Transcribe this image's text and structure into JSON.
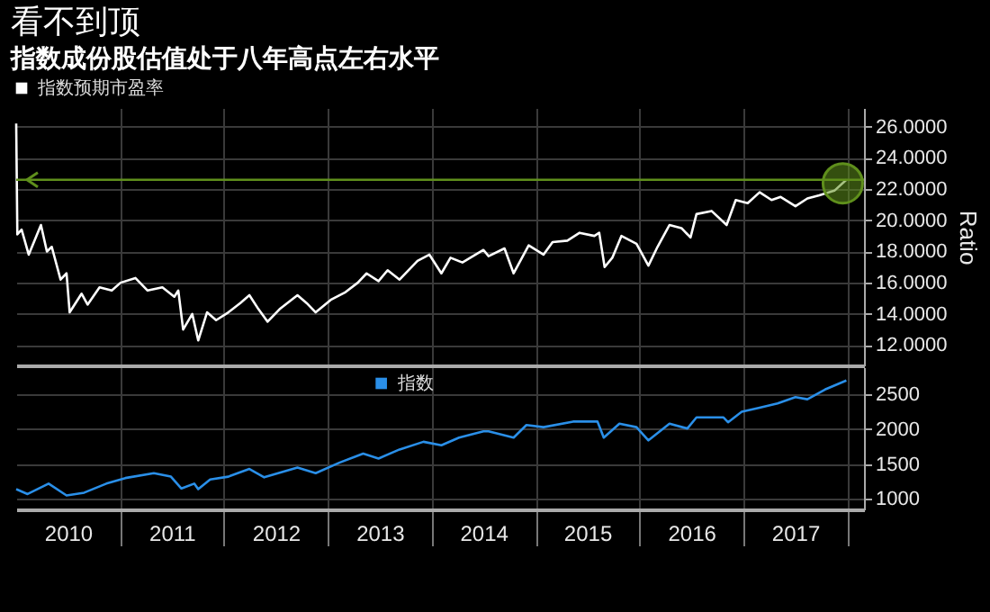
{
  "chart_data": [
    {
      "type": "line",
      "title": "看不到顶",
      "subtitle": "指数成份股估值处于八年高点左右水平",
      "ylabel": "Ratio",
      "x": [
        "2010-01-01",
        "2010-01-05",
        "2010-01-20",
        "2010-02-14",
        "2010-03-29",
        "2010-04-19",
        "2010-05-06",
        "2010-06-06",
        "2010-06-27",
        "2010-07-08",
        "2010-08-19",
        "2010-09-09",
        "2010-10-21",
        "2010-12-03",
        "2011-01-03",
        "2011-02-24",
        "2011-04-08",
        "2011-05-30",
        "2011-07-11",
        "2011-07-25",
        "2011-08-11",
        "2011-09-12",
        "2011-10-03",
        "2011-11-03",
        "2011-12-05",
        "2012-01-17",
        "2012-02-28",
        "2012-03-31",
        "2012-05-02",
        "2012-06-03",
        "2012-07-15",
        "2012-09-16",
        "2012-10-18",
        "2012-11-19",
        "2013-01-11",
        "2013-03-04",
        "2013-04-16",
        "2013-05-17",
        "2013-06-28",
        "2013-07-30",
        "2013-09-10",
        "2013-11-12",
        "2013-12-24",
        "2014-02-04",
        "2014-03-08",
        "2014-04-19",
        "2014-07-02",
        "2014-07-20",
        "2014-09-14",
        "2014-10-16",
        "2014-12-08",
        "2015-01-29",
        "2015-03-02",
        "2015-04-23",
        "2015-06-05",
        "2015-07-27",
        "2015-08-13",
        "2015-09-01",
        "2015-09-28",
        "2015-10-30",
        "2015-12-22",
        "2016-02-02",
        "2016-03-05",
        "2016-04-16",
        "2016-05-28",
        "2016-06-29",
        "2016-07-20",
        "2016-09-11",
        "2016-11-03",
        "2016-12-05",
        "2017-01-16",
        "2017-02-27",
        "2017-04-10",
        "2017-05-12",
        "2017-07-03",
        "2017-08-14",
        "2017-09-25",
        "2017-11-17",
        "2017-12-29"
      ],
      "series": [
        {
          "name": "指数预期市盈率",
          "color": "#ffffff",
          "values": [
            26.2,
            19.1,
            19.4,
            17.8,
            19.7,
            18.0,
            18.3,
            16.2,
            16.6,
            14.1,
            15.3,
            14.6,
            15.7,
            15.5,
            16.0,
            16.3,
            15.5,
            15.7,
            15.1,
            15.5,
            13.0,
            14.0,
            12.3,
            14.1,
            13.6,
            14.1,
            14.7,
            15.2,
            14.3,
            13.5,
            14.3,
            15.2,
            14.7,
            14.1,
            14.9,
            15.4,
            16.0,
            16.6,
            16.1,
            16.8,
            16.2,
            17.4,
            17.8,
            16.6,
            17.6,
            17.3,
            18.1,
            17.7,
            18.2,
            16.6,
            18.4,
            17.8,
            18.6,
            18.7,
            19.2,
            19.0,
            19.2,
            17.0,
            17.6,
            19.0,
            18.5,
            17.1,
            18.3,
            19.7,
            19.5,
            18.9,
            20.4,
            20.6,
            19.7,
            21.3,
            21.1,
            21.8,
            21.3,
            21.5,
            20.9,
            21.4,
            21.6,
            21.9,
            22.6
          ]
        }
      ],
      "xlim": [
        "2010-01-01",
        "2018-03-01"
      ],
      "ylim": [
        10.7,
        27.2
      ],
      "xticks": [
        {
          "value": "2011-01-01",
          "label": null
        },
        {
          "value": "2012-01-01",
          "label": null
        },
        {
          "value": "2013-01-01",
          "label": null
        },
        {
          "value": "2014-01-01",
          "label": null
        },
        {
          "value": "2015-01-01",
          "label": null
        },
        {
          "value": "2016-01-01",
          "label": null
        },
        {
          "value": "2017-01-01",
          "label": null
        },
        {
          "value": "2018-01-01",
          "label": null
        }
      ],
      "yticks": [
        {
          "value": 12,
          "label": "12.0000"
        },
        {
          "value": 14,
          "label": "14.0000"
        },
        {
          "value": 16,
          "label": "16.0000"
        },
        {
          "value": 18,
          "label": "18.0000"
        },
        {
          "value": 20,
          "label": "20.0000"
        },
        {
          "value": 22,
          "label": "22.0000"
        },
        {
          "value": 24,
          "label": "24.0000"
        },
        {
          "value": 26,
          "label": "26.0000"
        }
      ],
      "grid": true,
      "legend": "top left",
      "tick_labels": "y",
      "ref_lines": [
        {
          "axis": "y",
          "value": 22.6,
          "color": "#5f8f1c"
        }
      ]
    },
    {
      "type": "line",
      "x": [
        "2010-01-01",
        "2010-02-10",
        "2010-04-25",
        "2010-06-27",
        "2010-08-28",
        "2010-11-14",
        "2011-01-20",
        "2011-04-30",
        "2011-06-29",
        "2011-08-05",
        "2011-09-19",
        "2011-10-03",
        "2011-11-14",
        "2012-01-17",
        "2012-03-31",
        "2012-05-22",
        "2012-09-16",
        "2012-11-19",
        "2013-02-10",
        "2013-05-05",
        "2013-06-28",
        "2013-09-10",
        "2013-12-03",
        "2014-02-04",
        "2014-04-07",
        "2014-07-02",
        "2014-07-20",
        "2014-10-16",
        "2014-11-30",
        "2015-01-29",
        "2015-05-13",
        "2015-08-07",
        "2015-08-29",
        "2015-10-23",
        "2015-12-22",
        "2016-02-02",
        "2016-04-16",
        "2016-06-18",
        "2016-07-20",
        "2016-10-23",
        "2016-11-08",
        "2016-12-26",
        "2017-02-27",
        "2017-05-01",
        "2017-07-03",
        "2017-08-14",
        "2017-10-15",
        "2017-12-29"
      ],
      "series": [
        {
          "name": "指数",
          "color": "#2a8fe8",
          "values": [
            1140,
            1070,
            1220,
            1050,
            1090,
            1220,
            1300,
            1370,
            1320,
            1150,
            1220,
            1140,
            1280,
            1320,
            1430,
            1310,
            1450,
            1370,
            1520,
            1650,
            1580,
            1710,
            1820,
            1770,
            1880,
            1970,
            1970,
            1880,
            2060,
            2030,
            2110,
            2110,
            1880,
            2080,
            2030,
            1840,
            2080,
            2010,
            2170,
            2170,
            2100,
            2250,
            2310,
            2370,
            2460,
            2430,
            2570,
            2700
          ]
        }
      ],
      "xlim": [
        "2010-01-01",
        "2018-03-01"
      ],
      "ylim": [
        850,
        2890
      ],
      "xticks": [
        {
          "value": "2010-07-02",
          "label": "2010"
        },
        {
          "value": "2011-07-02",
          "label": "2011"
        },
        {
          "value": "2012-07-02",
          "label": "2012"
        },
        {
          "value": "2013-07-02",
          "label": "2013"
        },
        {
          "value": "2014-07-02",
          "label": "2014"
        },
        {
          "value": "2015-07-02",
          "label": "2015"
        },
        {
          "value": "2016-07-02",
          "label": "2016"
        },
        {
          "value": "2017-07-02",
          "label": "2017"
        },
        {
          "value": "2011-01-01",
          "label": null
        },
        {
          "value": "2012-01-01",
          "label": null
        },
        {
          "value": "2013-01-01",
          "label": null
        },
        {
          "value": "2014-01-01",
          "label": null
        },
        {
          "value": "2015-01-01",
          "label": null
        },
        {
          "value": "2016-01-01",
          "label": null
        },
        {
          "value": "2017-01-01",
          "label": null
        },
        {
          "value": "2018-01-01",
          "label": null
        }
      ],
      "yticks": [
        1000,
        1500,
        2000,
        2500
      ],
      "grid": true,
      "legend": "top"
    }
  ]
}
